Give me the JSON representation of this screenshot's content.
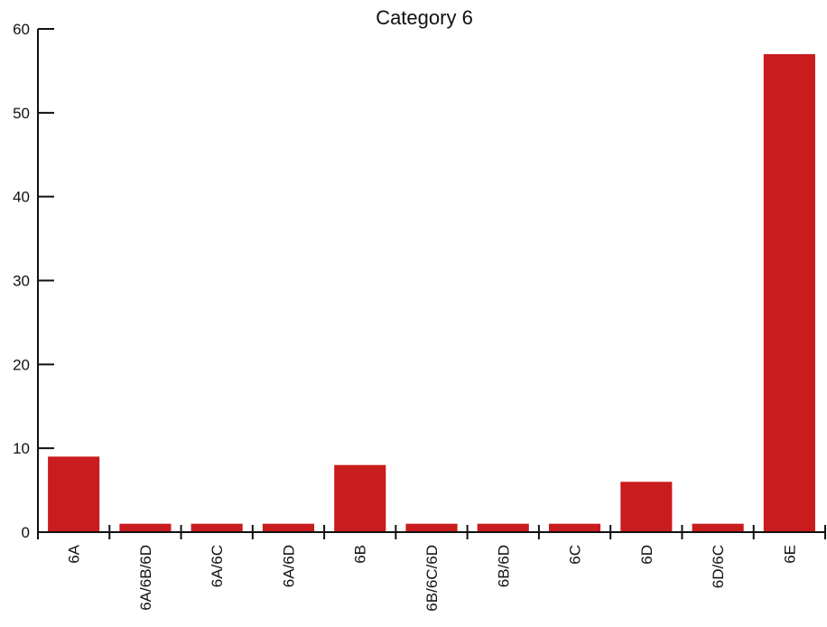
{
  "chart_data": {
    "type": "bar",
    "title": "Category 6",
    "xlabel": "",
    "ylabel": "",
    "categories": [
      "6A",
      "6A/6B/6D",
      "6A/6C",
      "6A/6D",
      "6B",
      "6B/6C/6D",
      "6B/6D",
      "6C",
      "6D",
      "6D/6C",
      "6E"
    ],
    "values": [
      9,
      1,
      1,
      1,
      8,
      1,
      1,
      1,
      6,
      1,
      57
    ],
    "ylim": [
      0,
      60
    ],
    "yticks": [
      0,
      10,
      20,
      30,
      40,
      50,
      60
    ],
    "grid": false,
    "legend": "none",
    "bar_color": "#c91c1c"
  }
}
